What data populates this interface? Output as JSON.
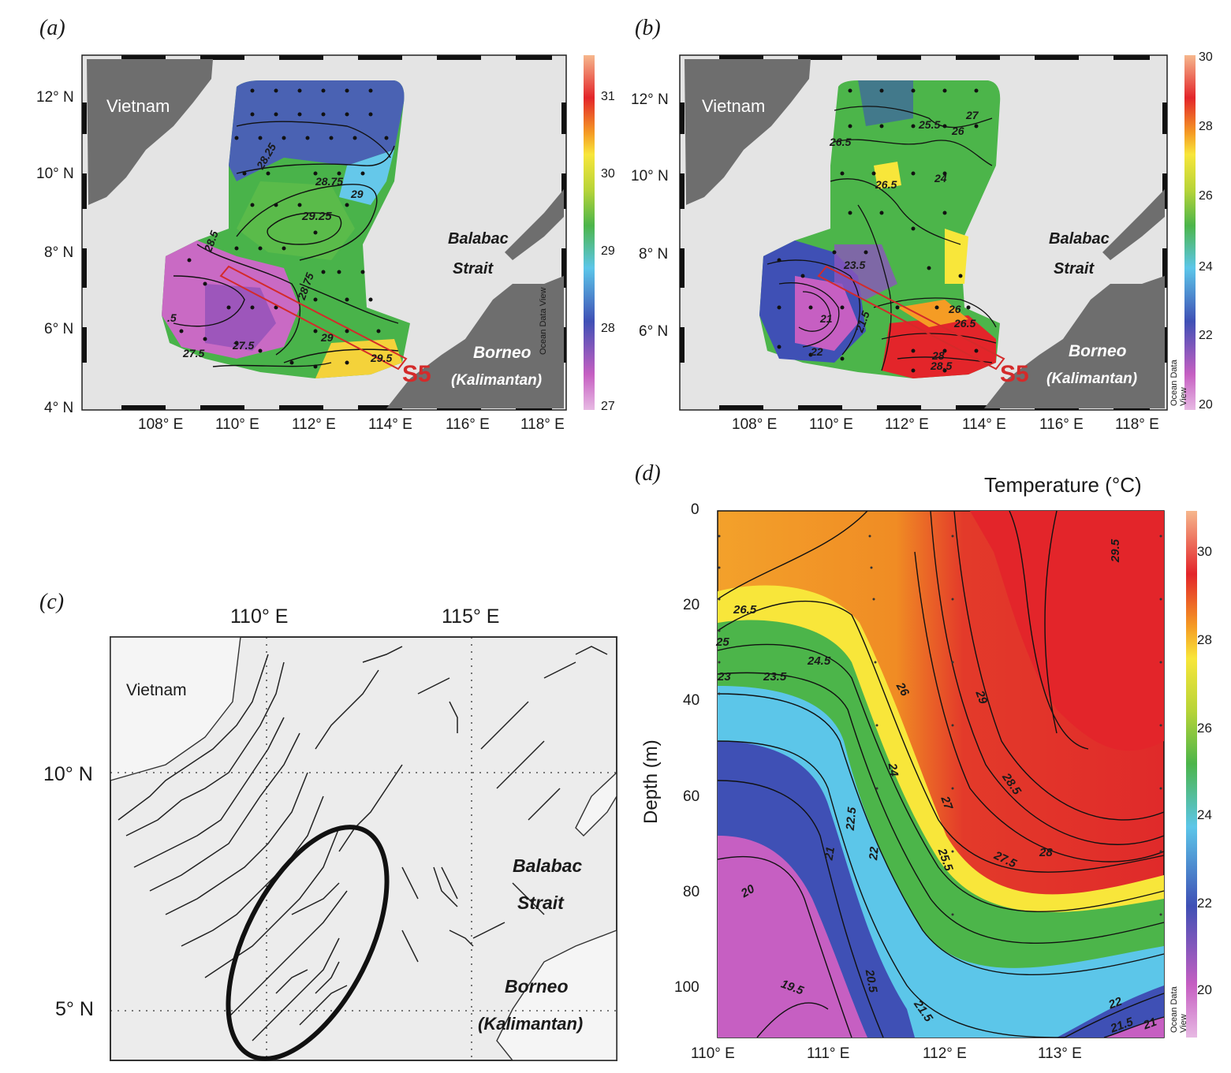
{
  "panels": {
    "a": {
      "letter": "(a)",
      "lat_ticks": [
        "12° N",
        "10° N",
        "8° N",
        "6° N",
        "4° N"
      ],
      "lon_ticks": [
        "108° E",
        "110° E",
        "112° E",
        "114° E",
        "116° E",
        "118° E"
      ],
      "places": {
        "vietnam": "Vietnam",
        "balabac": "Balabac",
        "strait": "Strait",
        "borneo": "Borneo",
        "kalimantan": "(Kalimantan)"
      },
      "section_label": "S5",
      "colorbar_ticks": [
        "31",
        "30",
        "29",
        "28",
        "27"
      ],
      "contour_labels": [
        "28.25",
        "28.75",
        "29",
        "29.25",
        "28.5",
        "28.75",
        "29",
        "29.5",
        "27.5",
        "27.5",
        ".5"
      ],
      "watermark": "Ocean Data View"
    },
    "b": {
      "letter": "(b)",
      "lat_ticks": [
        "12° N",
        "10° N",
        "8° N",
        "6° N"
      ],
      "lon_ticks": [
        "108° E",
        "110° E",
        "112° E",
        "114° E",
        "116° E",
        "118° E"
      ],
      "places": {
        "vietnam": "Vietnam",
        "balabac": "Balabac",
        "strait": "Strait",
        "borneo": "Borneo",
        "kalimantan": "(Kalimantan)"
      },
      "section_label": "S5",
      "colorbar_ticks": [
        "30",
        "28",
        "26",
        "24",
        "22",
        "20"
      ],
      "contour_labels": [
        "25.5",
        "26",
        "26.5",
        "26.5",
        "24",
        "27",
        "21",
        "21.5",
        "22",
        "26",
        "26.5",
        "28",
        "28.5",
        "23.5"
      ],
      "watermark": "Ocean Data View"
    },
    "c": {
      "letter": "(c)",
      "lon_ticks": [
        "110° E",
        "115° E"
      ],
      "lat_ticks": [
        "10° N",
        "5° N"
      ],
      "places": {
        "vietnam": "Vietnam",
        "balabac": "Balabac",
        "strait": "Strait",
        "borneo": "Borneo",
        "kalimantan": "(Kalimantan)"
      }
    },
    "d": {
      "letter": "(d)",
      "title": "Temperature (°C)",
      "ylabel": "Depth (m)",
      "depth_ticks": [
        "0",
        "20",
        "40",
        "60",
        "80",
        "100"
      ],
      "lon_ticks": [
        "110° E",
        "111° E",
        "112° E",
        "113° E"
      ],
      "colorbar_ticks": [
        "30",
        "28",
        "26",
        "24",
        "22",
        "20"
      ],
      "contour_labels": [
        "29.5",
        "29",
        "28.5",
        "28",
        "27.5",
        "27",
        "26",
        "26.5",
        "25",
        "24.5",
        "23.5",
        "23",
        "24",
        "22.5",
        "22",
        "21",
        "20",
        "20.5",
        "19.5",
        "21.5",
        "25.5",
        "22",
        "21.5",
        "21"
      ],
      "watermark": "Ocean Data View"
    }
  },
  "colors": {
    "land": "#6e6e6e",
    "sea": "#e4e4e4",
    "section_box": "#d42a2a",
    "contour": "#111111"
  }
}
